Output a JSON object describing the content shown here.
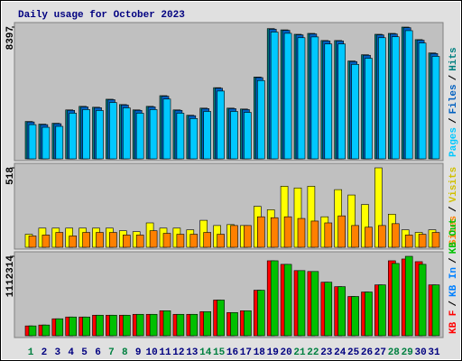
{
  "chart_data": {
    "type": "bar",
    "title": "Daily usage for October 2023",
    "separator": "/",
    "categories": [
      "1",
      "2",
      "3",
      "4",
      "5",
      "6",
      "7",
      "8",
      "9",
      "10",
      "11",
      "12",
      "13",
      "14",
      "15",
      "16",
      "17",
      "18",
      "19",
      "20",
      "21",
      "22",
      "23",
      "24",
      "25",
      "26",
      "27",
      "28",
      "29",
      "30",
      "31"
    ],
    "highlight_categories": [
      0,
      6,
      7,
      13,
      14,
      20,
      21,
      27,
      28
    ],
    "category_color": "#000080",
    "highlight_color": "#008040",
    "panels": [
      {
        "ylim": [
          0,
          8397
        ],
        "yticks": [
          8397
        ],
        "legend_reversed": true,
        "series": [
          {
            "name": "Hits",
            "color": "#008080",
            "values": [
              2382,
              2212,
              2268,
              3119,
              3345,
              3289,
              3799,
              3459,
              3119,
              3345,
              4026,
              3119,
              2778,
              3232,
              4536,
              3232,
              3175,
              5216,
              8300,
              8221,
              7938,
              7995,
              7541,
              7541,
              6237,
              6634,
              7938,
              7995,
              8397,
              7598,
              6747
            ]
          },
          {
            "name": "Files",
            "color": "#0060c0",
            "values": [
              2350,
              2180,
              2240,
              3090,
              3310,
              3260,
              3770,
              3430,
              3090,
              3310,
              3990,
              3090,
              2750,
              3200,
              4500,
              3200,
              3140,
              5180,
              8260,
              8190,
              7900,
              7960,
              7510,
              7510,
              6200,
              6600,
              7900,
              7960,
              8360,
              7560,
              6710
            ]
          },
          {
            "name": "Pages",
            "color": "#00c8ff",
            "values": [
              2180,
              2010,
              2070,
              2910,
              3140,
              3080,
              3590,
              3250,
              2910,
              3140,
              3810,
              2910,
              2570,
              3020,
              4320,
              3020,
              2960,
              4990,
              8080,
              8000,
              7720,
              7770,
              7320,
              7320,
              6020,
              6410,
              7720,
              7780,
              8170,
              7380,
              6530
            ]
          }
        ]
      },
      {
        "ylim": [
          0,
          518
        ],
        "yticks": [
          518
        ],
        "legend_reversed": true,
        "series": [
          {
            "name": "Visits",
            "color": "#ffff00",
            "values": [
              85,
              125,
              125,
              125,
              125,
              125,
              125,
              108,
              102,
              159,
              125,
              125,
              114,
              176,
              142,
              148,
              142,
              267,
              245,
              398,
              387,
              398,
              199,
              376,
              341,
              279,
              518,
              216,
              114,
              97,
              114
            ]
          },
          {
            "name": "Sites",
            "color": "#ff8000",
            "values": [
              74,
              80,
              97,
              74,
              97,
              97,
              97,
              80,
              80,
              108,
              91,
              85,
              85,
              97,
              85,
              142,
              142,
              199,
              193,
              199,
              188,
              171,
              159,
              205,
              142,
              131,
              142,
              154,
              80,
              85,
              97
            ]
          }
        ]
      },
      {
        "ylim": [
          0,
          1112314
        ],
        "yticks": [
          1112314
        ],
        "legend_reversed": false,
        "series": [
          {
            "name": "KB F",
            "color": "#ff0000",
            "values": [
              137478,
              149976,
              237462,
              262458,
              262458,
              287454,
              287454,
              287454,
              299952,
              299952,
              349944,
              299952,
              299952,
              337446,
              499920,
              324948,
              349944,
              637398,
              1049832,
              999840,
              912354,
              899856,
              749880,
              687390,
              549912,
              612402,
              712386,
              1049832,
              1074828,
              1037334,
              712386
            ]
          },
          {
            "name": "KB In",
            "color": "#0080ff",
            "values": [
              0,
              0,
              0,
              0,
              0,
              0,
              0,
              0,
              0,
              0,
              0,
              0,
              0,
              0,
              0,
              0,
              0,
              0,
              0,
              0,
              0,
              0,
              0,
              0,
              0,
              0,
              0,
              0,
              0,
              0,
              0
            ]
          },
          {
            "name": "KB Out",
            "color": "#00c000",
            "values": [
              137478,
              149976,
              237462,
              262458,
              262458,
              287454,
              287454,
              287454,
              299952,
              299952,
              349944,
              299952,
              299952,
              337446,
              499920,
              324948,
              349944,
              637398,
              1049832,
              999840,
              912354,
              899856,
              749880,
              687390,
              549912,
              612402,
              712386,
              1012338,
              1112314,
              1000000,
              712386
            ]
          }
        ]
      }
    ]
  }
}
